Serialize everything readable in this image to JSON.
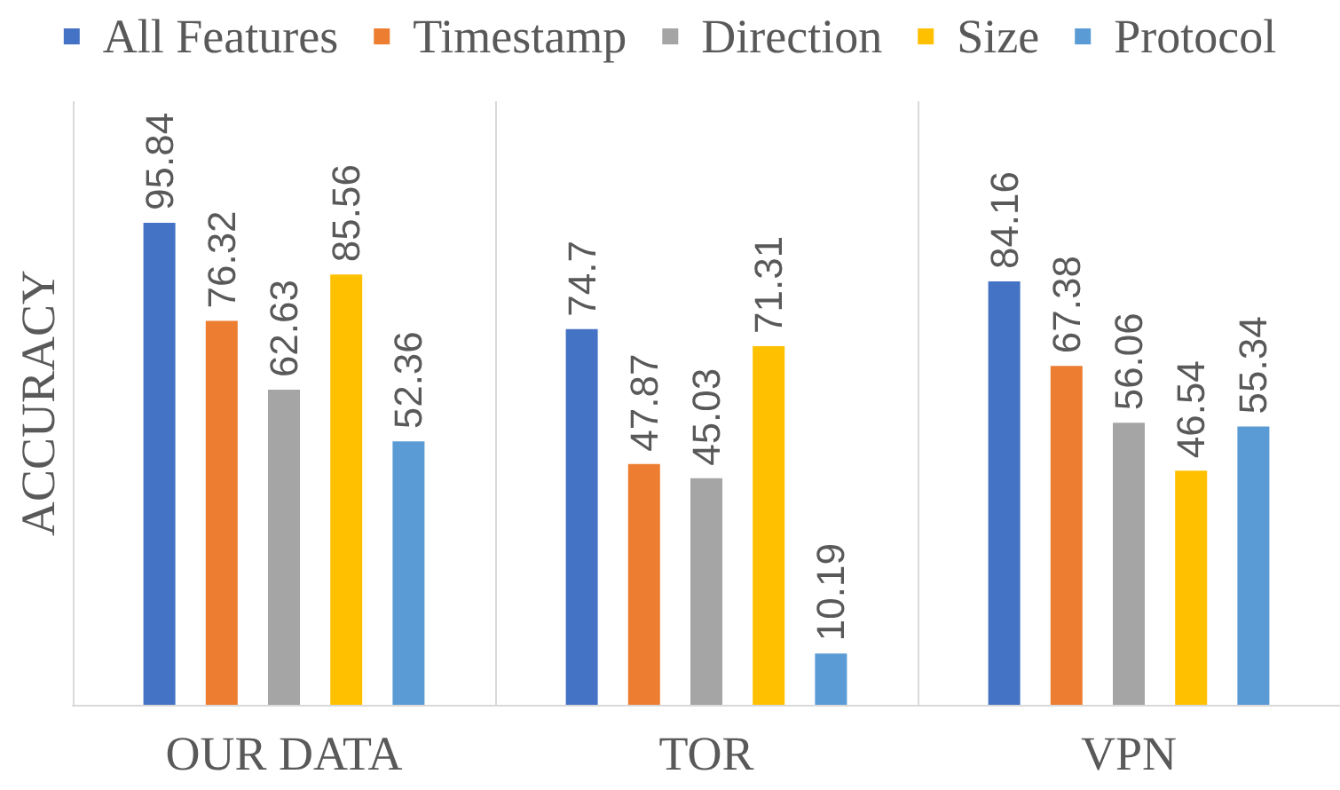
{
  "chart_data": {
    "type": "bar",
    "ylabel": "ACCURACY",
    "categories": [
      "OUR DATA",
      "TOR",
      "VPN"
    ],
    "series": [
      {
        "name": "All Features",
        "color": "#4472c4",
        "values": [
          95.84,
          74.7,
          84.16
        ]
      },
      {
        "name": "Timestamp",
        "color": "#ed7d31",
        "values": [
          76.32,
          47.87,
          67.38
        ]
      },
      {
        "name": "Direction",
        "color": "#a5a5a5",
        "values": [
          62.63,
          45.03,
          56.06
        ]
      },
      {
        "name": "Size",
        "color": "#ffc000",
        "values": [
          85.56,
          71.31,
          46.54
        ]
      },
      {
        "name": "Protocol",
        "color": "#5b9bd5",
        "values": [
          52.36,
          10.19,
          55.34
        ]
      }
    ],
    "data_labels": true,
    "legend": "top",
    "grid": "x",
    "tick_labels": "x"
  }
}
